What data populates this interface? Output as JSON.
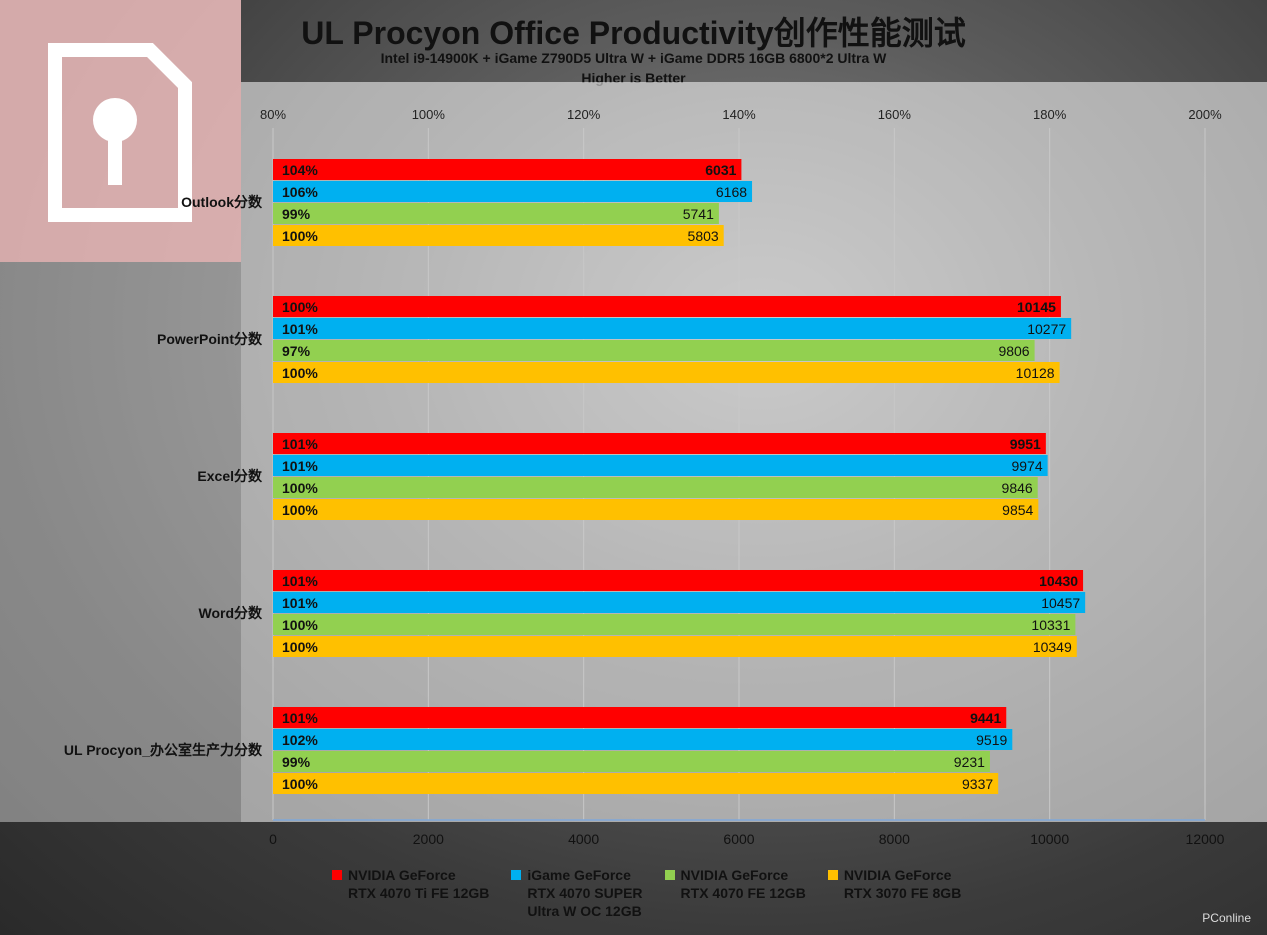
{
  "chart_data": {
    "type": "bar",
    "orientation": "horizontal",
    "title": "UL Procyon Office Productivity创作性能测试",
    "subtitle_lines": [
      "Intel i9-14900K + iGame Z790D5 Ultra W + iGame DDR5 16GB 6800*2 Ultra W",
      "Higher is Better"
    ],
    "categories": [
      "Outlook分数",
      "PowerPoint分数",
      "Excel分数",
      "Word分数",
      "UL Procyon_办公室生产力分数"
    ],
    "series": [
      {
        "name": "NVIDIA GeForce\nRTX 4070 Ti FE 12GB",
        "color": "#ff0000",
        "values": [
          6031,
          10145,
          9951,
          10430,
          9441
        ],
        "percents": [
          "104%",
          "100%",
          "101%",
          "101%",
          "101%"
        ]
      },
      {
        "name": "iGame GeForce\nRTX 4070 SUPER\nUltra W OC 12GB",
        "color": "#00b0f0",
        "values": [
          6168,
          10277,
          9974,
          10457,
          9519
        ],
        "percents": [
          "106%",
          "101%",
          "101%",
          "101%",
          "102%"
        ]
      },
      {
        "name": "NVIDIA GeForce\nRTX 4070 FE 12GB",
        "color": "#92d050",
        "values": [
          5741,
          9806,
          9846,
          10331,
          9231
        ],
        "percents": [
          "99%",
          "97%",
          "100%",
          "100%",
          "99%"
        ]
      },
      {
        "name": "NVIDIA GeForce\nRTX 3070 FE 8GB",
        "color": "#ffc000",
        "values": [
          5803,
          10128,
          9854,
          10349,
          9337
        ],
        "percents": [
          "100%",
          "100%",
          "100%",
          "100%",
          "100%"
        ]
      }
    ],
    "xlim": [
      0,
      12000
    ],
    "x_ticks": [
      "0",
      "2000",
      "4000",
      "6000",
      "8000",
      "10000",
      "12000"
    ],
    "secondary_xlim": [
      80,
      200
    ],
    "secondary_ticks": [
      "80%",
      "100%",
      "120%",
      "140%",
      "160%",
      "180%",
      "200%"
    ],
    "legend_position": "bottom"
  },
  "watermark": "PConline"
}
